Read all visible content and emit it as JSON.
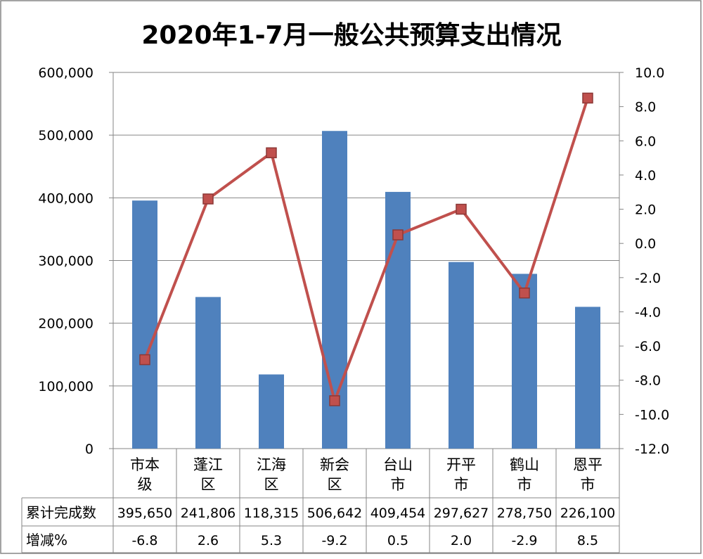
{
  "chart_data": {
    "type": "bar+line",
    "title": "2020年1-7月一般公共预算支出情况",
    "categories": [
      "市本级",
      "蓬江区",
      "江海区",
      "新会区",
      "台山市",
      "开平市",
      "鹤山市",
      "恩平市"
    ],
    "series": [
      {
        "name": "累计完成数",
        "type": "bar",
        "axis": "left",
        "color": "#4F81BD",
        "values": [
          395650,
          241806,
          118315,
          506642,
          409454,
          297627,
          278750,
          226100
        ],
        "labels": [
          "395,650",
          "241,806",
          "118,315",
          "506,642",
          "409,454",
          "297,627",
          "278,750",
          "226,100"
        ]
      },
      {
        "name": "增减%",
        "type": "line",
        "axis": "right",
        "color": "#C0504D",
        "values": [
          -6.8,
          2.6,
          5.3,
          -9.2,
          0.5,
          2.0,
          -2.9,
          8.5
        ],
        "labels": [
          "-6.8",
          "2.6",
          "5.3",
          "-9.2",
          "0.5",
          "2.0",
          "-2.9",
          "8.5"
        ]
      }
    ],
    "yleft": {
      "lim": [
        0,
        600000
      ],
      "ticks": [
        "0",
        "100,000",
        "200,000",
        "300,000",
        "400,000",
        "500,000",
        "600,000"
      ]
    },
    "yright": {
      "lim": [
        -12,
        10
      ],
      "ticks": [
        "-12.0",
        "-10.0",
        "-8.0",
        "-6.0",
        "-4.0",
        "-2.0",
        "0.0",
        "2.0",
        "4.0",
        "6.0",
        "8.0",
        "10.0"
      ]
    },
    "grid": true,
    "legend": "data-table"
  }
}
